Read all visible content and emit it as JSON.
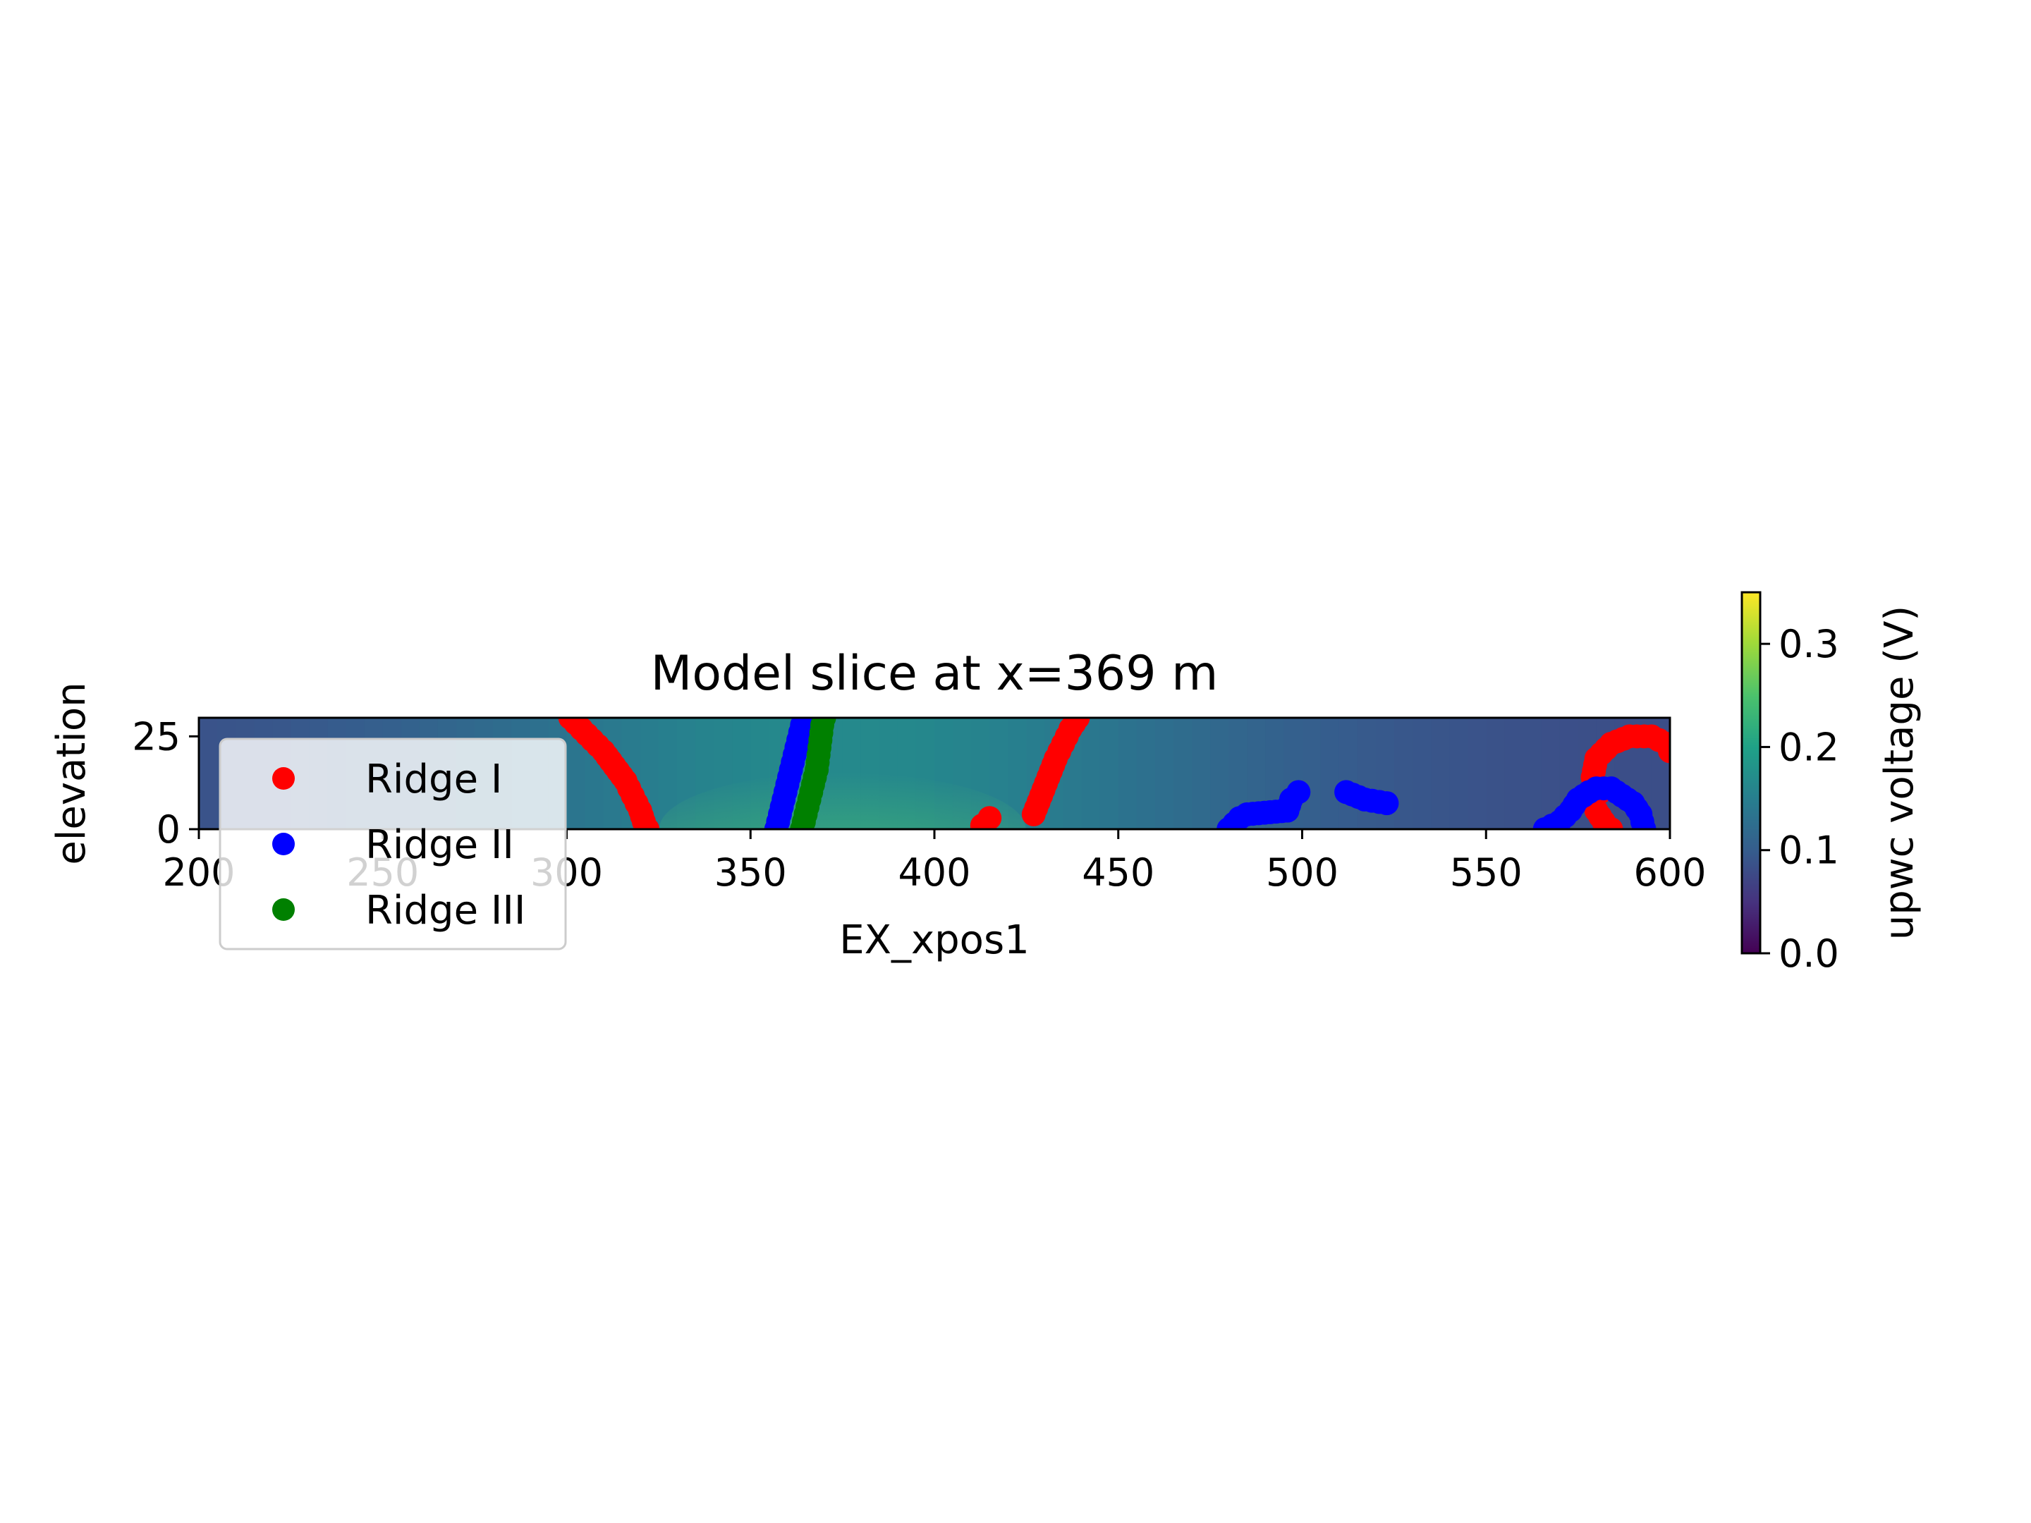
{
  "chart_data": {
    "type": "scatter",
    "title": "Model slice at x=369 m",
    "xlabel": "EX_xpos1",
    "ylabel": "elevation",
    "xlim": [
      200,
      600
    ],
    "ylim": [
      0,
      30
    ],
    "xticks": [
      "200",
      "250",
      "300",
      "350",
      "400",
      "450",
      "500",
      "550",
      "600"
    ],
    "yticks": [
      "0",
      "25"
    ],
    "legend_position": "lower-left",
    "background": {
      "type": "heatmap",
      "colormap": "viridis",
      "vmin": 0.0,
      "vmax": 0.35,
      "peak_x": 375,
      "colorbar_label": "upwc voltage (V)",
      "colorbar_ticks": [
        "0.0",
        "0.1",
        "0.2",
        "0.3"
      ]
    },
    "series": [
      {
        "name": "Ridge I",
        "color": "#ff0000",
        "points": [
          [
            301,
            30
          ],
          [
            304,
            27
          ],
          [
            307,
            24
          ],
          [
            310,
            21
          ],
          [
            313,
            17
          ],
          [
            316,
            13
          ],
          [
            318,
            9
          ],
          [
            320,
            5
          ],
          [
            321,
            2
          ],
          [
            322,
            0
          ],
          [
            413,
            1
          ],
          [
            415,
            3
          ],
          [
            427,
            4
          ],
          [
            429,
            9
          ],
          [
            431,
            14
          ],
          [
            433,
            19
          ],
          [
            435,
            23
          ],
          [
            437,
            27
          ],
          [
            439,
            30
          ],
          [
            581,
            10
          ],
          [
            579,
            14
          ],
          [
            580,
            19
          ],
          [
            584,
            23
          ],
          [
            589,
            25
          ],
          [
            595,
            25
          ],
          [
            599,
            23
          ],
          [
            600,
            21
          ],
          [
            580,
            5
          ],
          [
            582,
            2
          ],
          [
            584,
            0
          ]
        ]
      },
      {
        "name": "Ridge II",
        "color": "#0000ff",
        "points": [
          [
            357,
            0
          ],
          [
            358,
            4
          ],
          [
            359,
            8
          ],
          [
            360,
            12
          ],
          [
            361,
            16
          ],
          [
            362,
            20
          ],
          [
            363,
            24
          ],
          [
            364,
            28
          ],
          [
            364.5,
            30
          ],
          [
            480,
            0
          ],
          [
            483,
            3
          ],
          [
            485,
            4
          ],
          [
            496,
            5
          ],
          [
            497,
            8
          ],
          [
            499,
            10
          ],
          [
            512,
            10
          ],
          [
            517,
            8
          ],
          [
            523,
            7
          ],
          [
            566,
            0
          ],
          [
            570,
            2
          ],
          [
            573,
            5
          ],
          [
            575,
            8
          ],
          [
            578,
            10
          ],
          [
            580,
            11
          ],
          [
            584,
            11
          ],
          [
            590,
            7
          ],
          [
            592,
            4
          ],
          [
            593,
            0
          ]
        ]
      },
      {
        "name": "Ridge III",
        "color": "#008000",
        "points": [
          [
            364,
            0
          ],
          [
            365,
            4
          ],
          [
            366,
            8
          ],
          [
            367,
            12
          ],
          [
            368,
            16
          ],
          [
            368.5,
            20
          ],
          [
            369,
            24
          ],
          [
            369.5,
            28
          ],
          [
            370,
            30
          ]
        ]
      }
    ]
  }
}
